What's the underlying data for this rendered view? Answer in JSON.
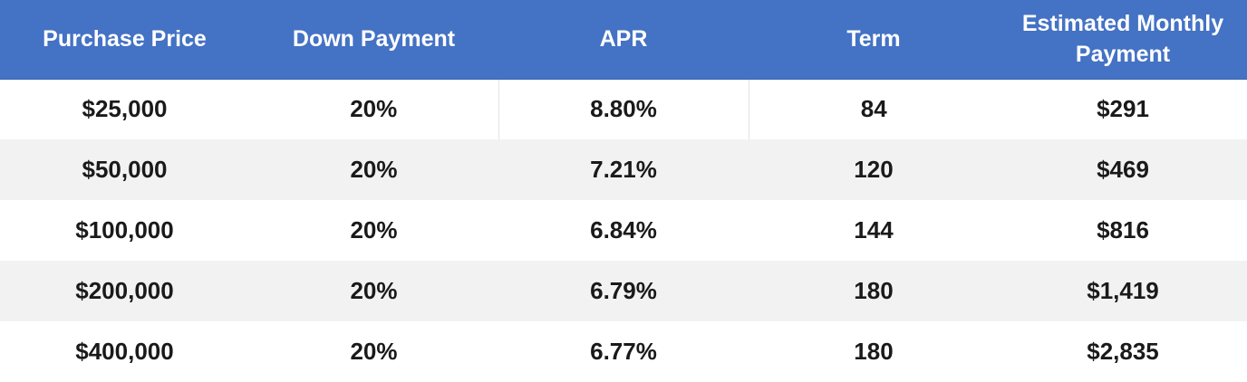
{
  "table": {
    "headers": [
      "Purchase Price",
      "Down Payment",
      "APR",
      "Term",
      "Estimated Monthly Payment"
    ],
    "rows": [
      [
        "$25,000",
        "20%",
        "8.80%",
        "84",
        "$291"
      ],
      [
        "$50,000",
        "20%",
        "7.21%",
        "120",
        "$469"
      ],
      [
        "$100,000",
        "20%",
        "6.84%",
        "144",
        "$816"
      ],
      [
        "$200,000",
        "20%",
        "6.79%",
        "180",
        "$1,419"
      ],
      [
        "$400,000",
        "20%",
        "6.77%",
        "180",
        "$2,835"
      ]
    ]
  },
  "colors": {
    "header_bg": "#4472c4",
    "header_text": "#ffffff",
    "row_alt_bg": "#f2f2f2",
    "row_bg": "#ffffff",
    "body_text": "#1a1a1a"
  }
}
